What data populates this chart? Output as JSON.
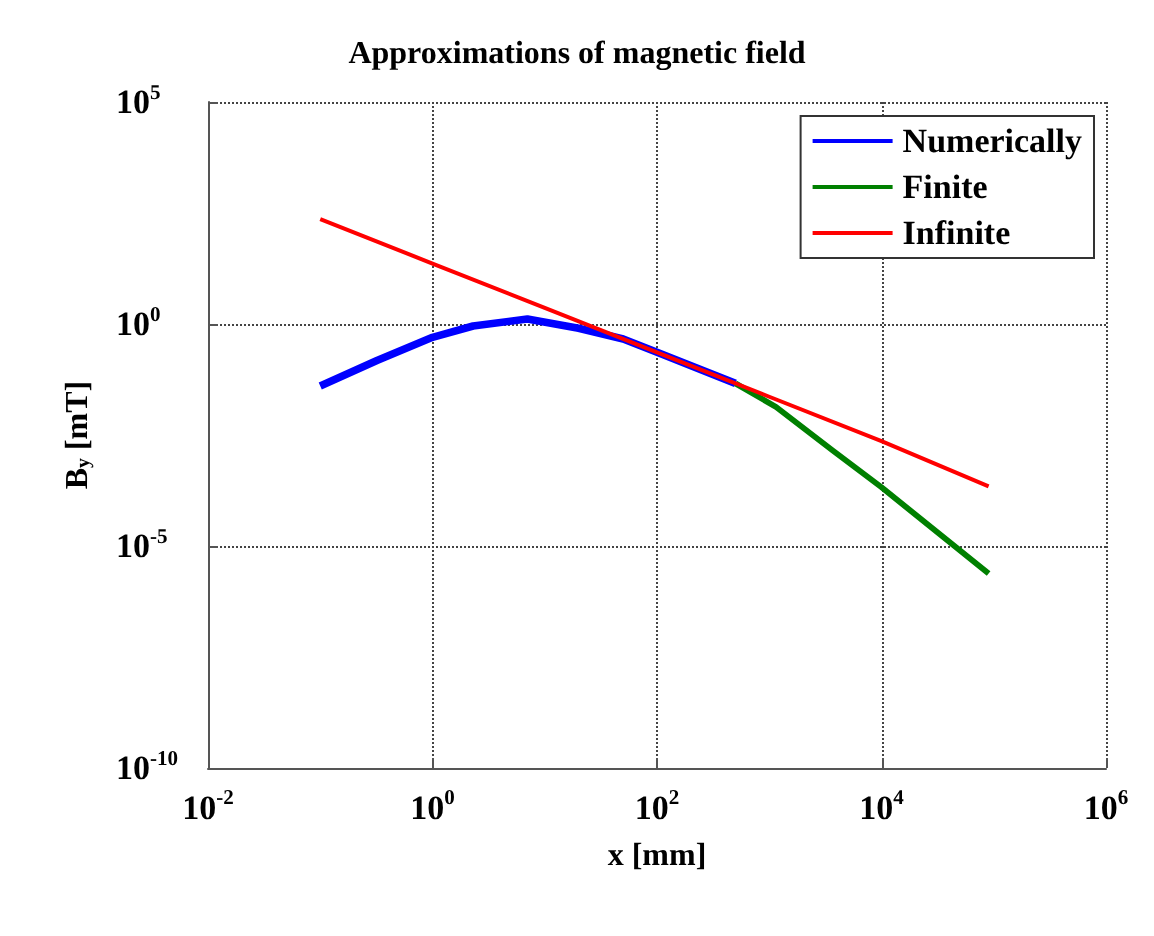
{
  "chart_data": {
    "type": "line",
    "title": "Approximations of magnetic field",
    "xlabel": "x [mm]",
    "ylabel": "B$_{y}$ [mT]",
    "log": "xy",
    "grid": true,
    "legend": "top right",
    "line_style": "solid",
    "marker": "none",
    "xlim": [
      0.01,
      1000000
    ],
    "ylim": [
      1e-10,
      100000
    ],
    "xticks": [
      {
        "value": 0.01,
        "label": "10$^{-2}$"
      },
      {
        "value": 1,
        "label": "10$^{0}$"
      },
      {
        "value": 100,
        "label": "10$^{2}$"
      },
      {
        "value": 10000,
        "label": "10$^{4}$"
      },
      {
        "value": 1000000,
        "label": "10$^{6}$"
      }
    ],
    "yticks": [
      {
        "value": 1e-10,
        "label": "10$^{-10}$"
      },
      {
        "value": 1e-05,
        "label": "10$^{-5}$"
      },
      {
        "value": 1,
        "label": "10$^{0}$"
      },
      {
        "value": 100000,
        "label": "10$^{5}$"
      }
    ],
    "series": [
      {
        "name": "Numerically",
        "color": "#0000ff",
        "x": [
          0.1,
          0.32,
          1,
          2.3,
          7,
          20,
          50,
          100,
          500
        ],
        "values": [
          0.04,
          0.15,
          0.5,
          0.9,
          1.3,
          0.8,
          0.46,
          0.23,
          0.046
        ]
      },
      {
        "name": "Finite",
        "color": "#008000",
        "x": [
          500,
          1150,
          3700,
          10000,
          90000
        ],
        "values": [
          0.046,
          0.0135,
          0.0014,
          0.00021,
          2.4e-06
        ]
      },
      {
        "name": "Infinite",
        "color": "#ff0000",
        "x": [
          0.1,
          1,
          10,
          100,
          1000,
          10000,
          90000
        ],
        "values": [
          230,
          23,
          2.3,
          0.23,
          0.023,
          0.0023,
          0.00022
        ]
      }
    ]
  }
}
